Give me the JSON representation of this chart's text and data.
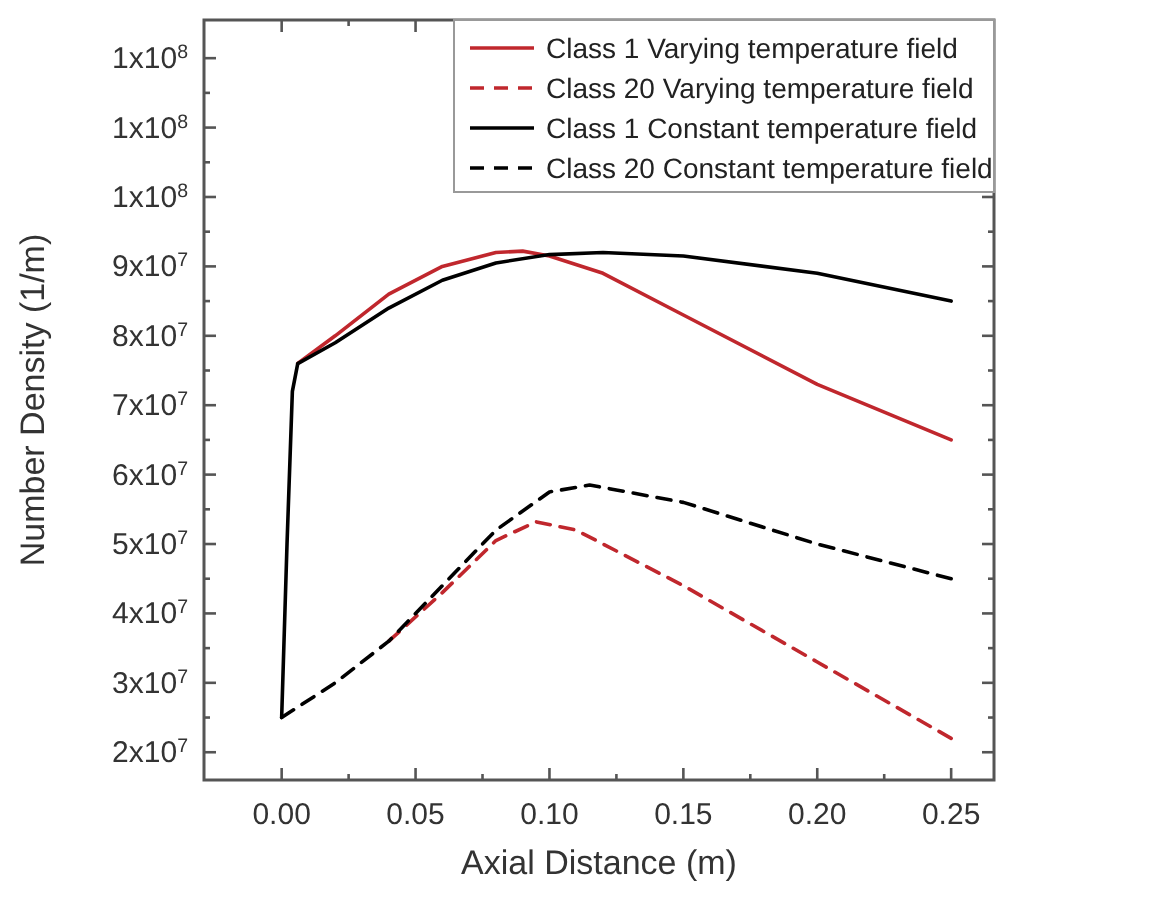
{
  "chart_data": {
    "type": "line",
    "xlabel": "Axial Distance (m)",
    "ylabel": "Number Density (1/m)",
    "xlim": [
      -0.029,
      0.266
    ],
    "ylim": [
      16000000,
      125500000
    ],
    "xticks": [
      {
        "value": 0,
        "label": "0.00"
      },
      {
        "value": 0.025,
        "label": null
      },
      {
        "value": 0.05,
        "label": "0.05"
      },
      {
        "value": 0.075,
        "label": null
      },
      {
        "value": 0.1,
        "label": "0.10"
      },
      {
        "value": 0.125,
        "label": null
      },
      {
        "value": 0.15,
        "label": "0.15"
      },
      {
        "value": 0.175,
        "label": null
      },
      {
        "value": 0.2,
        "label": "0.20"
      },
      {
        "value": 0.225,
        "label": null
      },
      {
        "value": 0.25,
        "label": "0.25"
      }
    ],
    "yticks": [
      {
        "value": 20000000,
        "label": "2x10$^{7}$"
      },
      {
        "value": 25000000,
        "label": null
      },
      {
        "value": 30000000,
        "label": "3x10$^{7}$"
      },
      {
        "value": 35000000,
        "label": null
      },
      {
        "value": 40000000,
        "label": "4x10$^{7}$"
      },
      {
        "value": 45000000,
        "label": null
      },
      {
        "value": 50000000,
        "label": "5x10$^{7}$"
      },
      {
        "value": 55000000,
        "label": null
      },
      {
        "value": 60000000,
        "label": "6x10$^{7}$"
      },
      {
        "value": 65000000,
        "label": null
      },
      {
        "value": 70000000,
        "label": "7x10$^{7}$"
      },
      {
        "value": 75000000,
        "label": null
      },
      {
        "value": 80000000,
        "label": "8x10$^{7}$"
      },
      {
        "value": 85000000,
        "label": null
      },
      {
        "value": 90000000,
        "label": "9x10$^{7}$"
      },
      {
        "value": 95000000,
        "label": null
      },
      {
        "value": 100000000,
        "label": "1x10$^{8}$"
      },
      {
        "value": 105000000,
        "label": null
      },
      {
        "value": 110000000,
        "label": "1x10$^{8}$"
      },
      {
        "value": 115000000,
        "label": null
      },
      {
        "value": 120000000,
        "label": "1x10$^{8}$"
      }
    ],
    "grid": false,
    "legend": "top right",
    "marker": "none",
    "series": [
      {
        "name": "Class 1 Varying temperature field",
        "color": "#c0272d",
        "line_style": "solid",
        "x": [
          0.006,
          0.02,
          0.04,
          0.06,
          0.08,
          0.09,
          0.1,
          0.12,
          0.15,
          0.2,
          0.25
        ],
        "values": [
          76000000,
          80000000,
          86000000,
          90000000,
          92000000,
          92200000,
          91500000,
          89000000,
          83000000,
          73000000,
          65000000
        ]
      },
      {
        "name": "Class 20 Varying temperature field",
        "color": "#c0272d",
        "line_style": "dashed",
        "x": [
          0.04,
          0.06,
          0.08,
          0.095,
          0.11,
          0.15,
          0.2,
          0.25
        ],
        "values": [
          36000000,
          43000000,
          50500000,
          53200000,
          52000000,
          44000000,
          33000000,
          22000000
        ]
      },
      {
        "name": "Class 1 Constant temperature field",
        "color": "#000000",
        "line_style": "solid",
        "x": [
          0,
          0.002,
          0.004,
          0.006,
          0.02,
          0.04,
          0.06,
          0.08,
          0.1,
          0.12,
          0.15,
          0.2,
          0.25
        ],
        "values": [
          25000000,
          50000000,
          72000000,
          76000000,
          79000000,
          84000000,
          88000000,
          90500000,
          91700000,
          92000000,
          91500000,
          89000000,
          85000000
        ]
      },
      {
        "name": "Class 20 Constant temperature field",
        "color": "#000000",
        "line_style": "dashed",
        "x": [
          0,
          0.02,
          0.04,
          0.06,
          0.08,
          0.1,
          0.115,
          0.15,
          0.2,
          0.25
        ],
        "values": [
          25000000,
          30000000,
          36000000,
          44000000,
          52000000,
          57500000,
          58500000,
          56000000,
          50000000,
          45000000
        ]
      }
    ]
  }
}
